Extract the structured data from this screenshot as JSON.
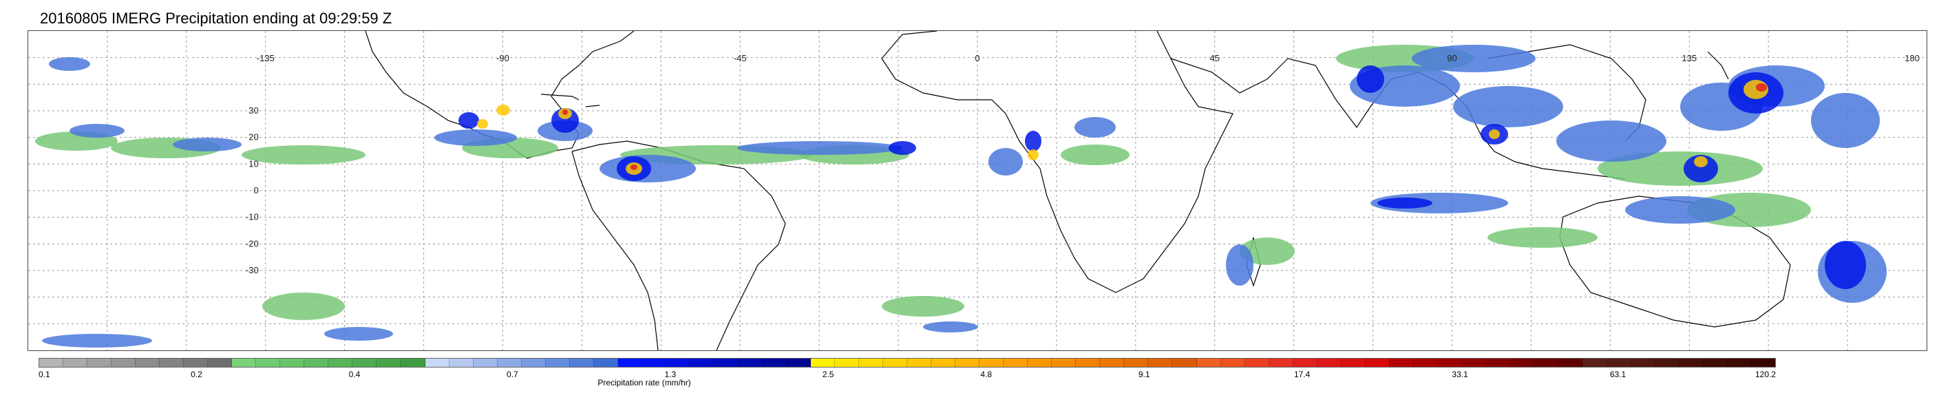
{
  "title": "20160805 IMERG Precipitation ending at 09:29:59 Z",
  "map": {
    "lon_labels": [
      "-135",
      "-90",
      "-45",
      "0",
      "45",
      "90",
      "135",
      "180"
    ],
    "lat_labels": [
      "30",
      "20",
      "10",
      "0",
      "-10",
      "-20",
      "-30"
    ],
    "lon_range": [
      -180,
      180
    ],
    "lat_range": [
      -60,
      60
    ],
    "grid": true
  },
  "colorbar": {
    "label": "Precipitation rate (mm/hr)",
    "ticks": [
      "0.1",
      "0.2",
      "0.4",
      "0.7",
      "1.3",
      "2.5",
      "4.8",
      "9.1",
      "17.4",
      "33.1",
      "63.1",
      "120.2"
    ],
    "colors": [
      "#b4b4b4",
      "#aaaaaa",
      "#a0a0a0",
      "#969696",
      "#8c8c8c",
      "#828282",
      "#787878",
      "#6e6e6e",
      "#78d278",
      "#70cc70",
      "#68c468",
      "#60bc60",
      "#58b458",
      "#50ac50",
      "#48a448",
      "#409c40",
      "#c8d7f5",
      "#b4c8f0",
      "#a0b9eb",
      "#8caae6",
      "#789be1",
      "#648cdc",
      "#507dd7",
      "#3c6ed2",
      "#0014ff",
      "#0012f0",
      "#0010e0",
      "#000ed0",
      "#000cc0",
      "#000ab0",
      "#0008a0",
      "#000690",
      "#fff000",
      "#ffe600",
      "#ffdc00",
      "#ffd200",
      "#ffc800",
      "#ffbe00",
      "#ffb400",
      "#ffaa00",
      "#ffa000",
      "#fa9600",
      "#f58c00",
      "#f08200",
      "#eb7800",
      "#e66e00",
      "#e16400",
      "#dc5a00",
      "#f06020",
      "#ee5020",
      "#ea4020",
      "#e63020",
      "#e22020",
      "#de1818",
      "#da1010",
      "#d60808",
      "#b40000",
      "#a80000",
      "#9c0000",
      "#900000",
      "#840000",
      "#780000",
      "#6c0000",
      "#600000",
      "#5a2018",
      "#551c14",
      "#501810",
      "#4b140c",
      "#461008",
      "#410c04",
      "#3c0800",
      "#370400"
    ]
  }
}
